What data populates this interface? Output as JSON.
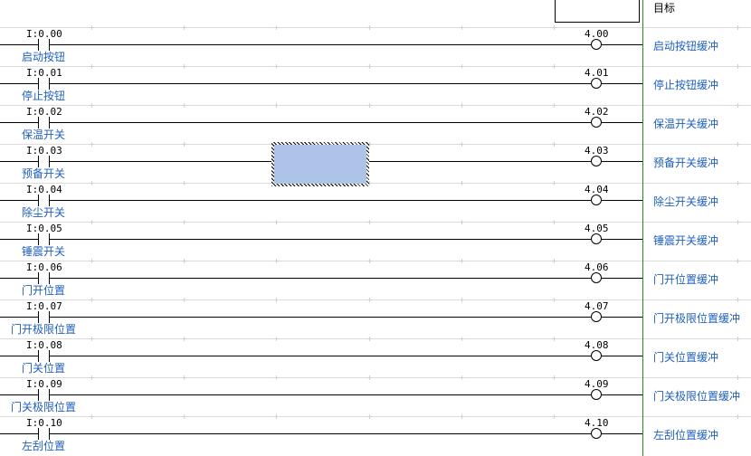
{
  "header": {
    "target_column_title": "目标"
  },
  "colors": {
    "rail": "#2a8a2a",
    "label": "#1f5fbf",
    "selection": "#adc3e8"
  },
  "rungs": [
    {
      "input_address": "I:0.00",
      "input_comment": "启动按钮",
      "output_address": "4.00",
      "output_comment": "启动按钮缓冲"
    },
    {
      "input_address": "I:0.01",
      "input_comment": "停止按钮",
      "output_address": "4.01",
      "output_comment": "停止按钮缓冲"
    },
    {
      "input_address": "I:0.02",
      "input_comment": "保温开关",
      "output_address": "4.02",
      "output_comment": "保温开关缓冲"
    },
    {
      "input_address": "I:0.03",
      "input_comment": "预备开关",
      "output_address": "4.03",
      "output_comment": "预备开关缓冲"
    },
    {
      "input_address": "I:0.04",
      "input_comment": "除尘开关",
      "output_address": "4.04",
      "output_comment": "除尘开关缓冲"
    },
    {
      "input_address": "I:0.05",
      "input_comment": "锤震开关",
      "output_address": "4.05",
      "output_comment": "锤震开关缓冲"
    },
    {
      "input_address": "I:0.06",
      "input_comment": "门开位置",
      "output_address": "4.06",
      "output_comment": "门开位置缓冲"
    },
    {
      "input_address": "I:0.07",
      "input_comment": "门开极限位置",
      "output_address": "4.07",
      "output_comment": "门开极限位置缓冲"
    },
    {
      "input_address": "I:0.08",
      "input_comment": "门关位置",
      "output_address": "4.08",
      "output_comment": "门关位置缓冲"
    },
    {
      "input_address": "I:0.09",
      "input_comment": "门关极限位置",
      "output_address": "4.09",
      "output_comment": "门关极限位置缓冲"
    },
    {
      "input_address": "I:0.10",
      "input_comment": "左刮位置",
      "output_address": "4.10",
      "output_comment": "左刮位置缓冲"
    }
  ]
}
